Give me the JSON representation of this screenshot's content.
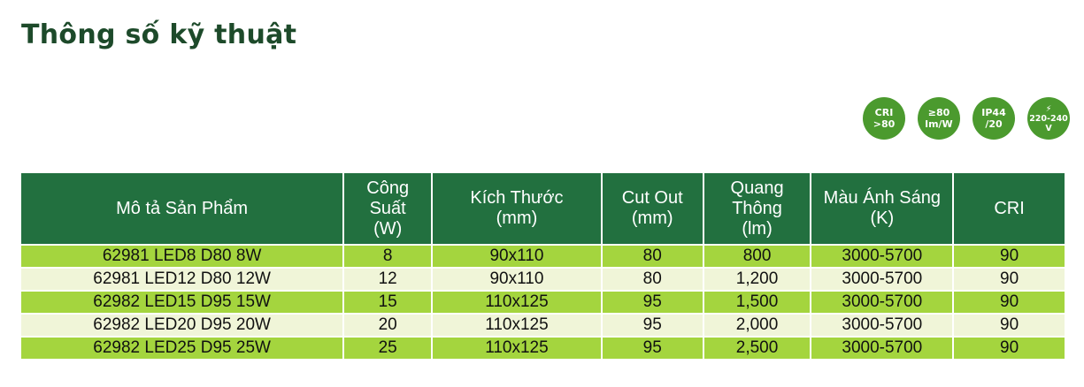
{
  "title": "Thông số kỹ thuật",
  "badges": [
    {
      "icon": "cri-icon",
      "line1": "CRI",
      "line2": ">80"
    },
    {
      "icon": "efficacy-icon",
      "line1": "≥80",
      "line2": "lm/W"
    },
    {
      "icon": "ip-rating-icon",
      "line1": "IP44",
      "line2": "/20"
    },
    {
      "icon": "voltage-icon",
      "line0": "⚡",
      "line1": "220-240",
      "line2": "V"
    }
  ],
  "colors": {
    "header": "#22703f",
    "row_green": "#a4d53e",
    "row_light": "#f0f5d8",
    "badge": "#4b9a2e",
    "title": "#1d4a2a"
  },
  "table": {
    "headers": [
      "Mô tả Sản Phẩm",
      "Công Suất (W)",
      "Kích Thước (mm)",
      "Cut Out (mm)",
      "Quang Thông (lm)",
      "Màu Ánh Sáng (K)",
      "CRI"
    ],
    "rows": [
      [
        "62981 LED8 D80 8W",
        "8",
        "90x110",
        "80",
        "800",
        "3000-5700",
        "90"
      ],
      [
        "62981 LED12 D80 12W",
        "12",
        "90x110",
        "80",
        "1,200",
        "3000-5700",
        "90"
      ],
      [
        "62982 LED15 D95 15W",
        "15",
        "110x125",
        "95",
        "1,500",
        "3000-5700",
        "90"
      ],
      [
        "62982 LED20 D95 20W",
        "20",
        "110x125",
        "95",
        "2,000",
        "3000-5700",
        "90"
      ],
      [
        "62982 LED25 D95 25W",
        "25",
        "110x125",
        "95",
        "2,500",
        "3000-5700",
        "90"
      ]
    ]
  }
}
